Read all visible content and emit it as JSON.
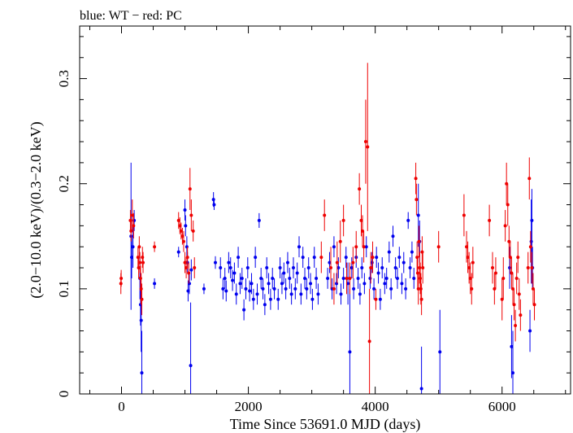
{
  "chart_data": {
    "type": "scatter",
    "title": "blue: WT − red: PC",
    "xlabel": "Time Since 53691.0 MJD (days)",
    "ylabel": "(2.0−10.0 keV)/(0.3−2.0 keV)",
    "xlim": [
      -660,
      7080
    ],
    "ylim": [
      0,
      0.35
    ],
    "xticks": [
      0,
      2000,
      4000,
      6000
    ],
    "xtick_labels": [
      "0",
      "2000",
      "4000",
      "6000"
    ],
    "yticks": [
      0,
      0.1,
      0.2,
      0.3
    ],
    "ytick_labels": [
      "0",
      "0.1",
      "0.2",
      "0.3"
    ],
    "grid": false,
    "series": [
      {
        "name": "WT",
        "color": "#0000ee",
        "points": [
          [
            150,
            0.15,
            0.07
          ],
          [
            160,
            0.13,
            0.02
          ],
          [
            180,
            0.14,
            0.02
          ],
          [
            200,
            0.165,
            0.01
          ],
          [
            290,
            0.11,
            0.02
          ],
          [
            300,
            0.085,
            0.02
          ],
          [
            310,
            0.07,
            0.03
          ],
          [
            320,
            0.02,
            0.04
          ],
          [
            520,
            0.105,
            0.005
          ],
          [
            900,
            0.135,
            0.005
          ],
          [
            1000,
            0.175,
            0.01
          ],
          [
            1010,
            0.16,
            0.01
          ],
          [
            1030,
            0.14,
            0.01
          ],
          [
            1040,
            0.125,
            0.01
          ],
          [
            1050,
            0.098,
            0.01
          ],
          [
            1070,
            0.105,
            0.01
          ],
          [
            1090,
            0.027,
            0.06
          ],
          [
            1100,
            0.118,
            0.01
          ],
          [
            1300,
            0.1,
            0.005
          ],
          [
            1450,
            0.185,
            0.007
          ],
          [
            1460,
            0.18,
            0.005
          ],
          [
            1480,
            0.125,
            0.006
          ],
          [
            1560,
            0.12,
            0.01
          ],
          [
            1600,
            0.1,
            0.01
          ],
          [
            1630,
            0.11,
            0.01
          ],
          [
            1650,
            0.098,
            0.01
          ],
          [
            1690,
            0.125,
            0.01
          ],
          [
            1720,
            0.12,
            0.01
          ],
          [
            1750,
            0.108,
            0.01
          ],
          [
            1780,
            0.115,
            0.01
          ],
          [
            1810,
            0.095,
            0.01
          ],
          [
            1840,
            0.13,
            0.01
          ],
          [
            1870,
            0.105,
            0.01
          ],
          [
            1900,
            0.11,
            0.01
          ],
          [
            1930,
            0.08,
            0.01
          ],
          [
            1960,
            0.1,
            0.01
          ],
          [
            1990,
            0.12,
            0.01
          ],
          [
            2020,
            0.098,
            0.01
          ],
          [
            2050,
            0.105,
            0.01
          ],
          [
            2080,
            0.09,
            0.01
          ],
          [
            2110,
            0.13,
            0.01
          ],
          [
            2140,
            0.095,
            0.01
          ],
          [
            2170,
            0.165,
            0.007
          ],
          [
            2200,
            0.11,
            0.01
          ],
          [
            2230,
            0.1,
            0.01
          ],
          [
            2260,
            0.085,
            0.01
          ],
          [
            2290,
            0.12,
            0.01
          ],
          [
            2320,
            0.105,
            0.01
          ],
          [
            2350,
            0.09,
            0.01
          ],
          [
            2380,
            0.11,
            0.01
          ],
          [
            2410,
            0.1,
            0.01
          ],
          [
            2470,
            0.09,
            0.01
          ],
          [
            2500,
            0.12,
            0.01
          ],
          [
            2530,
            0.105,
            0.01
          ],
          [
            2560,
            0.115,
            0.01
          ],
          [
            2590,
            0.1,
            0.01
          ],
          [
            2620,
            0.125,
            0.01
          ],
          [
            2650,
            0.11,
            0.01
          ],
          [
            2680,
            0.095,
            0.01
          ],
          [
            2710,
            0.12,
            0.01
          ],
          [
            2740,
            0.1,
            0.01
          ],
          [
            2770,
            0.115,
            0.01
          ],
          [
            2800,
            0.14,
            0.01
          ],
          [
            2830,
            0.095,
            0.01
          ],
          [
            2860,
            0.13,
            0.01
          ],
          [
            2890,
            0.11,
            0.01
          ],
          [
            2920,
            0.1,
            0.01
          ],
          [
            2950,
            0.12,
            0.01
          ],
          [
            2980,
            0.105,
            0.01
          ],
          [
            3010,
            0.09,
            0.01
          ],
          [
            3040,
            0.13,
            0.01
          ],
          [
            3070,
            0.11,
            0.01
          ],
          [
            3100,
            0.095,
            0.01
          ],
          [
            3250,
            0.11,
            0.01
          ],
          [
            3280,
            0.125,
            0.01
          ],
          [
            3320,
            0.1,
            0.01
          ],
          [
            3350,
            0.14,
            0.01
          ],
          [
            3390,
            0.105,
            0.01
          ],
          [
            3420,
            0.12,
            0.01
          ],
          [
            3460,
            0.095,
            0.01
          ],
          [
            3500,
            0.11,
            0.01
          ],
          [
            3540,
            0.13,
            0.01
          ],
          [
            3570,
            0.105,
            0.02
          ],
          [
            3600,
            0.04,
            0.06
          ],
          [
            3630,
            0.12,
            0.01
          ],
          [
            3660,
            0.1,
            0.01
          ],
          [
            3700,
            0.13,
            0.01
          ],
          [
            3730,
            0.11,
            0.01
          ],
          [
            3760,
            0.095,
            0.01
          ],
          [
            3790,
            0.12,
            0.01
          ],
          [
            3830,
            0.105,
            0.01
          ],
          [
            3860,
            0.14,
            0.01
          ],
          [
            3920,
            0.11,
            0.01
          ],
          [
            3950,
            0.125,
            0.01
          ],
          [
            3980,
            0.1,
            0.01
          ],
          [
            4020,
            0.13,
            0.01
          ],
          [
            4050,
            0.115,
            0.01
          ],
          [
            4080,
            0.09,
            0.01
          ],
          [
            4110,
            0.12,
            0.01
          ],
          [
            4150,
            0.105,
            0.01
          ],
          [
            4180,
            0.11,
            0.01
          ],
          [
            4220,
            0.135,
            0.01
          ],
          [
            4250,
            0.1,
            0.01
          ],
          [
            4280,
            0.15,
            0.01
          ],
          [
            4320,
            0.12,
            0.01
          ],
          [
            4350,
            0.11,
            0.01
          ],
          [
            4380,
            0.13,
            0.01
          ],
          [
            4420,
            0.105,
            0.01
          ],
          [
            4450,
            0.125,
            0.01
          ],
          [
            4480,
            0.1,
            0.01
          ],
          [
            4520,
            0.165,
            0.008
          ],
          [
            4550,
            0.12,
            0.01
          ],
          [
            4580,
            0.135,
            0.01
          ],
          [
            4610,
            0.11,
            0.01
          ],
          [
            4680,
            0.17,
            0.03
          ],
          [
            4700,
            0.145,
            0.02
          ],
          [
            4730,
            0.005,
            0.04
          ],
          [
            5020,
            0.04,
            0.04
          ],
          [
            6120,
            0.12,
            0.02
          ],
          [
            6150,
            0.045,
            0.03
          ],
          [
            6170,
            0.02,
            0.04
          ],
          [
            6440,
            0.06,
            0.02
          ],
          [
            6460,
            0.145,
            0.04
          ],
          [
            6470,
            0.165,
            0.03
          ],
          [
            6480,
            0.12,
            0.02
          ]
        ]
      },
      {
        "name": "PC",
        "color": "#ee0000",
        "points": [
          [
            -10,
            0.105,
            0.01
          ],
          [
            -5,
            0.11,
            0.008
          ],
          [
            140,
            0.165,
            0.01
          ],
          [
            150,
            0.155,
            0.01
          ],
          [
            170,
            0.17,
            0.015
          ],
          [
            190,
            0.16,
            0.012
          ],
          [
            260,
            0.13,
            0.01
          ],
          [
            270,
            0.12,
            0.01
          ],
          [
            280,
            0.14,
            0.01
          ],
          [
            290,
            0.125,
            0.01
          ],
          [
            300,
            0.11,
            0.012
          ],
          [
            310,
            0.1,
            0.015
          ],
          [
            320,
            0.09,
            0.015
          ],
          [
            330,
            0.13,
            0.01
          ],
          [
            340,
            0.125,
            0.01
          ],
          [
            520,
            0.14,
            0.005
          ],
          [
            900,
            0.165,
            0.008
          ],
          [
            920,
            0.16,
            0.008
          ],
          [
            940,
            0.155,
            0.008
          ],
          [
            960,
            0.15,
            0.008
          ],
          [
            980,
            0.145,
            0.01
          ],
          [
            1000,
            0.125,
            0.01
          ],
          [
            1020,
            0.12,
            0.01
          ],
          [
            1040,
            0.13,
            0.01
          ],
          [
            1060,
            0.115,
            0.01
          ],
          [
            1080,
            0.195,
            0.02
          ],
          [
            1100,
            0.17,
            0.015
          ],
          [
            1130,
            0.155,
            0.01
          ],
          [
            1150,
            0.12,
            0.01
          ],
          [
            3150,
            0.13,
            0.015
          ],
          [
            3200,
            0.17,
            0.015
          ],
          [
            3300,
            0.12,
            0.02
          ],
          [
            3350,
            0.1,
            0.015
          ],
          [
            3400,
            0.125,
            0.02
          ],
          [
            3450,
            0.145,
            0.02
          ],
          [
            3500,
            0.165,
            0.015
          ],
          [
            3550,
            0.11,
            0.015
          ],
          [
            3600,
            0.11,
            0.015
          ],
          [
            3650,
            0.125,
            0.015
          ],
          [
            3700,
            0.14,
            0.015
          ],
          [
            3750,
            0.195,
            0.015
          ],
          [
            3780,
            0.165,
            0.015
          ],
          [
            3800,
            0.155,
            0.015
          ],
          [
            3820,
            0.14,
            0.015
          ],
          [
            3850,
            0.24,
            0.04
          ],
          [
            3880,
            0.235,
            0.08
          ],
          [
            3910,
            0.05,
            0.05
          ],
          [
            3930,
            0.12,
            0.015
          ],
          [
            3960,
            0.13,
            0.015
          ],
          [
            4010,
            0.09,
            0.01
          ],
          [
            4640,
            0.205,
            0.015
          ],
          [
            4650,
            0.185,
            0.015
          ],
          [
            4660,
            0.13,
            0.015
          ],
          [
            4670,
            0.115,
            0.015
          ],
          [
            4680,
            0.1,
            0.015
          ],
          [
            4690,
            0.145,
            0.015
          ],
          [
            4700,
            0.12,
            0.015
          ],
          [
            4710,
            0.11,
            0.015
          ],
          [
            4720,
            0.1,
            0.015
          ],
          [
            4730,
            0.09,
            0.015
          ],
          [
            4740,
            0.135,
            0.015
          ],
          [
            4750,
            0.12,
            0.015
          ],
          [
            5000,
            0.14,
            0.015
          ],
          [
            5400,
            0.17,
            0.02
          ],
          [
            5440,
            0.14,
            0.015
          ],
          [
            5460,
            0.13,
            0.015
          ],
          [
            5480,
            0.12,
            0.015
          ],
          [
            5500,
            0.11,
            0.015
          ],
          [
            5520,
            0.1,
            0.015
          ],
          [
            5540,
            0.125,
            0.015
          ],
          [
            5800,
            0.165,
            0.015
          ],
          [
            5850,
            0.12,
            0.015
          ],
          [
            5880,
            0.1,
            0.015
          ],
          [
            5900,
            0.115,
            0.015
          ],
          [
            6000,
            0.09,
            0.02
          ],
          [
            6020,
            0.11,
            0.02
          ],
          [
            6050,
            0.16,
            0.015
          ],
          [
            6070,
            0.2,
            0.02
          ],
          [
            6090,
            0.18,
            0.02
          ],
          [
            6110,
            0.145,
            0.015
          ],
          [
            6130,
            0.13,
            0.015
          ],
          [
            6150,
            0.115,
            0.015
          ],
          [
            6170,
            0.1,
            0.015
          ],
          [
            6190,
            0.085,
            0.015
          ],
          [
            6210,
            0.065,
            0.015
          ],
          [
            6230,
            0.11,
            0.015
          ],
          [
            6250,
            0.13,
            0.015
          ],
          [
            6270,
            0.095,
            0.015
          ],
          [
            6290,
            0.075,
            0.015
          ],
          [
            6410,
            0.12,
            0.015
          ],
          [
            6430,
            0.205,
            0.02
          ],
          [
            6450,
            0.14,
            0.015
          ],
          [
            6470,
            0.12,
            0.015
          ],
          [
            6490,
            0.1,
            0.015
          ],
          [
            6510,
            0.085,
            0.015
          ]
        ]
      }
    ]
  }
}
